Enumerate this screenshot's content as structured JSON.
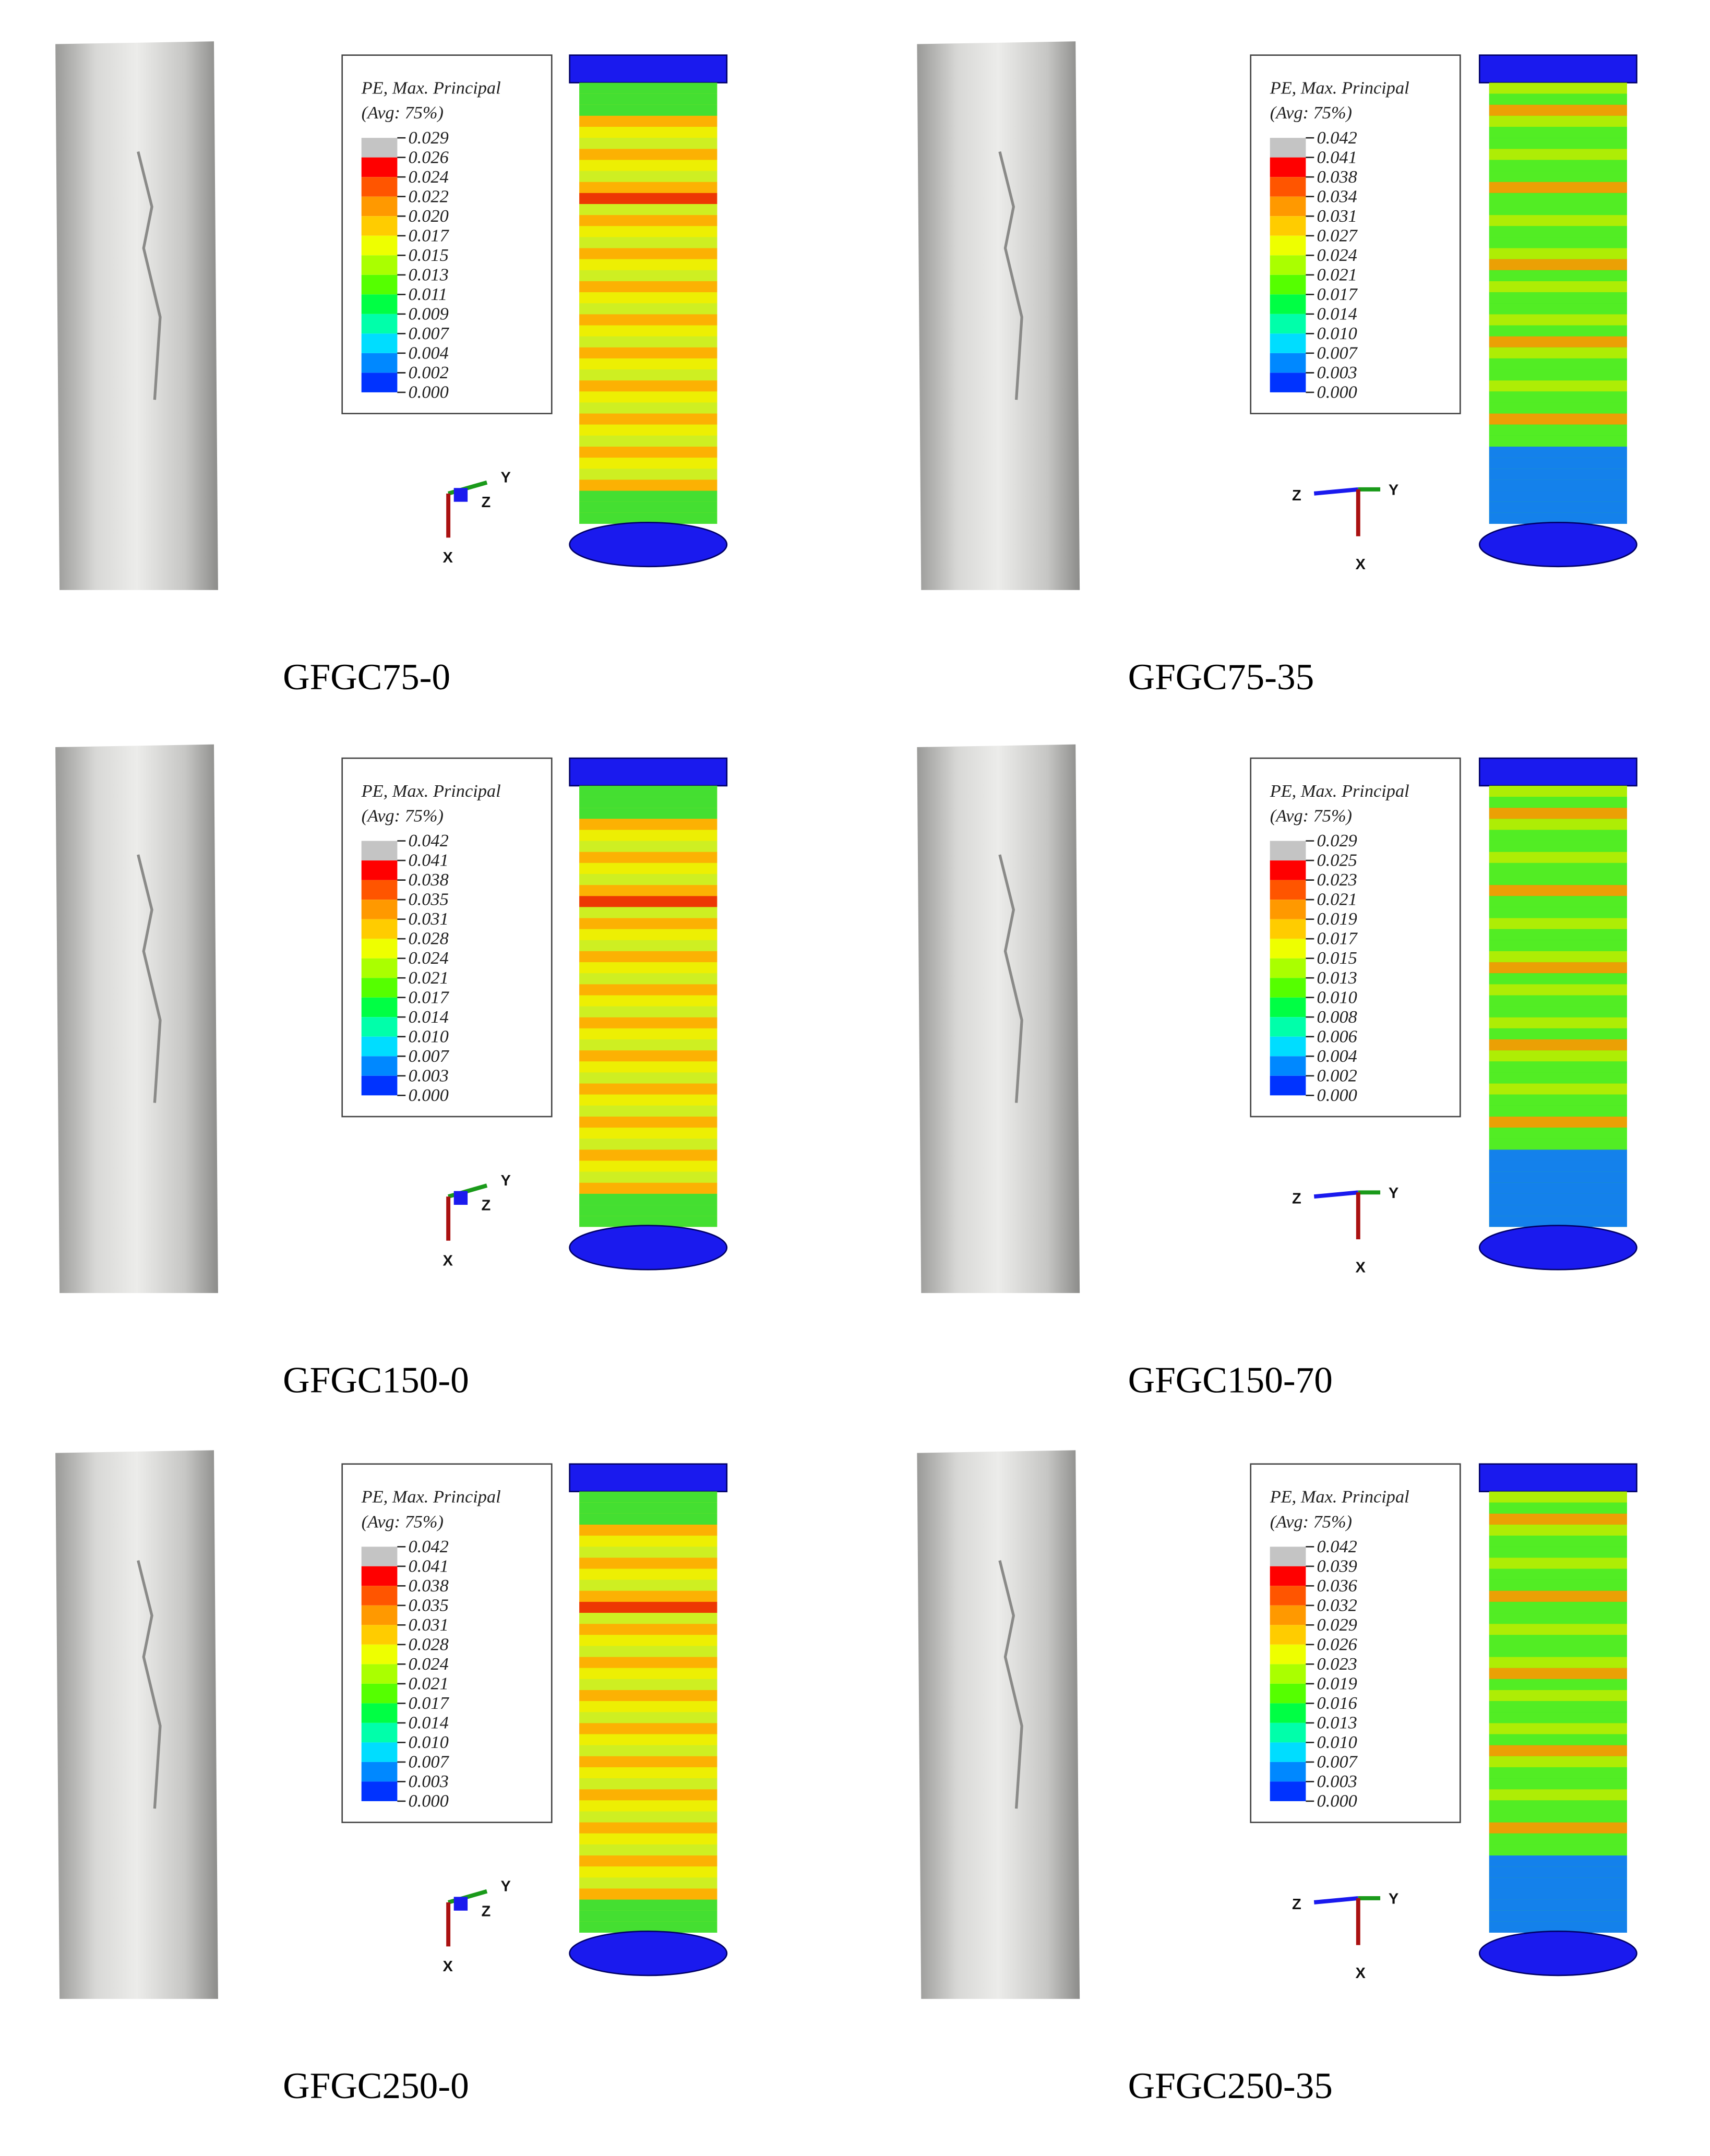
{
  "panels": [
    {
      "caption": "GFGC75-0",
      "legend_title": "PE, Max. Principal",
      "legend_subtitle": "(Avg: 75%)",
      "legend_labels": [
        "0.029",
        "0.026",
        "0.024",
        "0.022",
        "0.020",
        "0.017",
        "0.015",
        "0.013",
        "0.011",
        "0.009",
        "0.007",
        "0.004",
        "0.002",
        "0.000"
      ],
      "axes": [
        "Y",
        "Z",
        "X"
      ]
    },
    {
      "caption": "GFGC75-35",
      "legend_title": "PE, Max. Principal",
      "legend_subtitle": "(Avg: 75%)",
      "legend_labels": [
        "0.042",
        "0.041",
        "0.038",
        "0.034",
        "0.031",
        "0.027",
        "0.024",
        "0.021",
        "0.017",
        "0.014",
        "0.010",
        "0.007",
        "0.003",
        "0.000"
      ],
      "axes": [
        "Z",
        "Y",
        "X"
      ]
    },
    {
      "caption": "GFGC150-0",
      "legend_title": "PE, Max. Principal",
      "legend_subtitle": "(Avg: 75%)",
      "legend_labels": [
        "0.042",
        "0.041",
        "0.038",
        "0.035",
        "0.031",
        "0.028",
        "0.024",
        "0.021",
        "0.017",
        "0.014",
        "0.010",
        "0.007",
        "0.003",
        "0.000"
      ],
      "axes": [
        "Y",
        "Z",
        "X"
      ]
    },
    {
      "caption": "GFGC150-70",
      "legend_title": "PE, Max. Principal",
      "legend_subtitle": "(Avg: 75%)",
      "legend_labels": [
        "0.029",
        "0.025",
        "0.023",
        "0.021",
        "0.019",
        "0.017",
        "0.015",
        "0.013",
        "0.010",
        "0.008",
        "0.006",
        "0.004",
        "0.002",
        "0.000"
      ],
      "axes": [
        "Z",
        "Y",
        "X"
      ]
    },
    {
      "caption": "GFGC250-0",
      "legend_title": "PE, Max. Principal",
      "legend_subtitle": "(Avg: 75%)",
      "legend_labels": [
        "0.042",
        "0.041",
        "0.038",
        "0.035",
        "0.031",
        "0.028",
        "0.024",
        "0.021",
        "0.017",
        "0.014",
        "0.010",
        "0.007",
        "0.003",
        "0.000"
      ],
      "axes": [
        "Y",
        "Z",
        "X"
      ]
    },
    {
      "caption": "GFGC250-35",
      "legend_title": "PE, Max. Principal",
      "legend_subtitle": "(Avg: 75%)",
      "legend_labels": [
        "0.042",
        "0.039",
        "0.036",
        "0.032",
        "0.029",
        "0.026",
        "0.023",
        "0.019",
        "0.016",
        "0.013",
        "0.010",
        "0.007",
        "0.003",
        "0.000"
      ],
      "axes": [
        "Z",
        "Y",
        "X"
      ]
    }
  ]
}
